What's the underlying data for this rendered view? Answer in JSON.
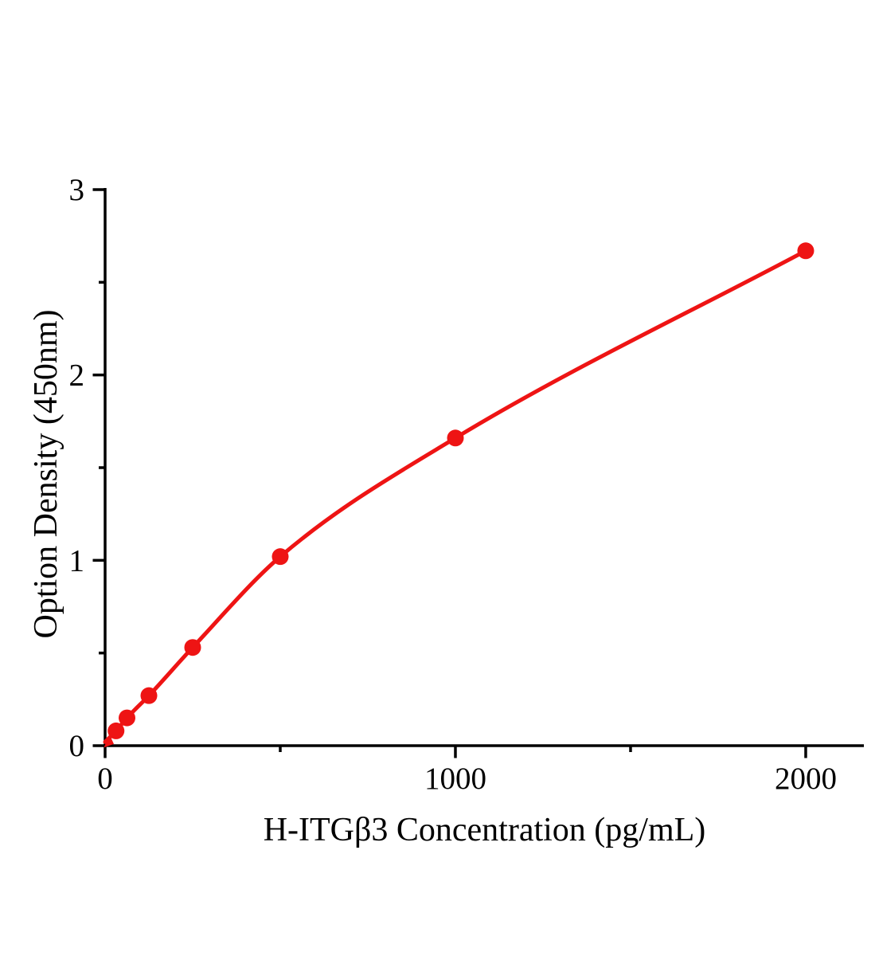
{
  "figure": {
    "background": "#ffffff"
  },
  "chart_data": {
    "type": "scatter",
    "title": "",
    "xlabel": "H-ITGβ3 Concentration (pg/mL)",
    "ylabel": "Option Density (450nm)",
    "xlim": [
      0,
      2166
    ],
    "ylim": [
      0,
      3
    ],
    "grid": false,
    "legend": null,
    "x_major_ticks": [
      {
        "value": 0,
        "label": "0"
      },
      {
        "value": 1000,
        "label": "1000"
      },
      {
        "value": 2000,
        "label": "2000"
      }
    ],
    "x_minor_ticks": [
      500,
      1500
    ],
    "y_major_ticks": [
      {
        "value": 0,
        "label": "0"
      },
      {
        "value": 1,
        "label": "1"
      },
      {
        "value": 2,
        "label": "2"
      },
      {
        "value": 3,
        "label": "3"
      }
    ],
    "y_minor_ticks": [
      0.5,
      1.5,
      2.5
    ],
    "curve_start": {
      "x": 0,
      "y": 0.02
    },
    "points": [
      {
        "x": 31.25,
        "y": 0.08
      },
      {
        "x": 62.5,
        "y": 0.15
      },
      {
        "x": 125,
        "y": 0.27
      },
      {
        "x": 250,
        "y": 0.53
      },
      {
        "x": 500,
        "y": 1.02
      },
      {
        "x": 1000,
        "y": 1.66
      },
      {
        "x": 2000,
        "y": 2.67
      }
    ],
    "line_color": "#ee1414",
    "marker_color": "#ee1414",
    "axis_color": "#000000"
  }
}
